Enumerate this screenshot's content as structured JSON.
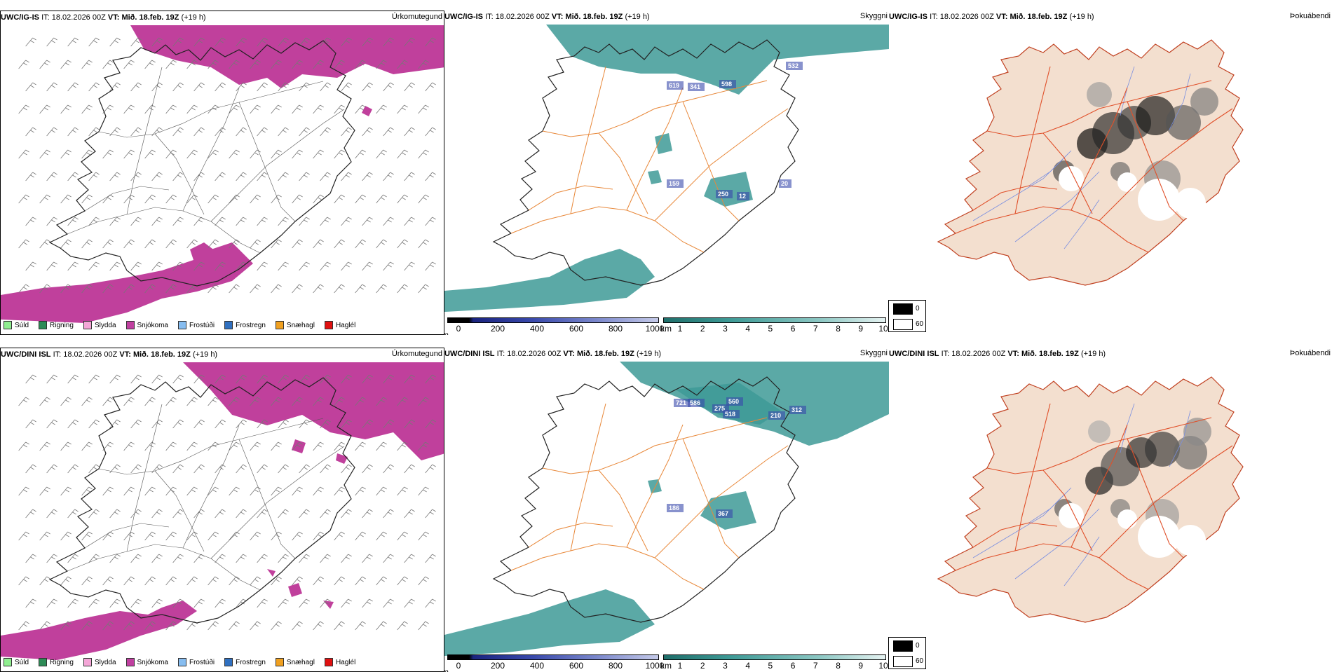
{
  "rows": [
    {
      "model": "UWC/IG-IS",
      "it_label": "IT:",
      "it_value": "18.02.2026 00Z",
      "vt_label": "VT:",
      "vt_value": "Mið. 18.feb. 19Z",
      "lead": "(+19 h)",
      "precip_title": "Úrkomutegund",
      "cloud_title": "Skyggni",
      "fog_title": "Þokuábendi",
      "cloud_labels": [
        "619",
        "341",
        "598",
        "532",
        "159",
        "250",
        "12",
        "20"
      ]
    },
    {
      "model": "UWC/DINI ISL",
      "it_label": "IT:",
      "it_value": "18.02.2026 00Z",
      "vt_label": "VT:",
      "vt_value": "Mið. 18.feb. 19Z",
      "lead": "(+19 h)",
      "precip_title": "Úrkomutegund",
      "cloud_title": "Skyggni",
      "fog_title": "Þokuábendi",
      "cloud_labels": [
        "721",
        "586",
        "275",
        "560",
        "518",
        "210",
        "312",
        "186",
        "367"
      ]
    }
  ],
  "precip_legend": [
    {
      "label": "Súld",
      "color": "#90ee90"
    },
    {
      "label": "Rigning",
      "color": "#2e8b57"
    },
    {
      "label": "Slydda",
      "color": "#f4a6d7"
    },
    {
      "label": "Snjókoma",
      "color": "#c040a0"
    },
    {
      "label": "Frostúði",
      "color": "#87bdf0"
    },
    {
      "label": "Frostregn",
      "color": "#3070c0"
    },
    {
      "label": "Snæhagl",
      "color": "#f0a020"
    },
    {
      "label": "Haglél",
      "color": "#e01010"
    }
  ],
  "ceiling_bar": {
    "unit": "m",
    "ticks": [
      "0",
      "200",
      "400",
      "600",
      "800",
      "1000"
    ]
  },
  "visibility_bar": {
    "unit": "km",
    "ticks": [
      "1",
      "2",
      "3",
      "4",
      "5",
      "6",
      "7",
      "8",
      "9",
      "10"
    ]
  },
  "fog_legend": [
    {
      "label": "0",
      "color": "#000000"
    },
    {
      "label": "60",
      "color": "#ffffff"
    }
  ],
  "colors": {
    "snow": "#c0409c",
    "teal": "#3e9a96",
    "orange_roads": "#e8883a",
    "land_fog": "#f3dfcf",
    "red_roads": "#e0502a",
    "rivers": "#7a8fe0"
  }
}
